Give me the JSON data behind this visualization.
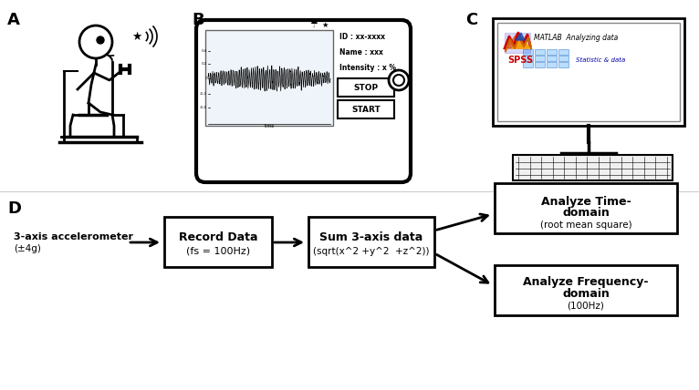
{
  "bg_color": "#ffffff",
  "label_A": "A",
  "label_B": "B",
  "label_C": "C",
  "label_D": "D",
  "accelerometer_label": "3-axis accelerometer",
  "accelerometer_sublabel": "(±4g)",
  "box1_line1": "Record Data",
  "box1_line2": "(fs = 100Hz)",
  "box2_line1": "Sum 3-axis data",
  "box2_line2": "(sqrt(x^2 +y^2  +z^2))",
  "box3_line1": "Analyze Time-",
  "box3_line2": "domain",
  "box3_line3": "(root mean square)",
  "box4_line1": "Analyze Frequency-",
  "box4_line2": "domain",
  "box4_line3": "(100Hz)",
  "device_id": "ID : xx-xxxx",
  "device_name": "Name : xxx",
  "device_intensity": "Intensity : x %",
  "device_stop": "STOP",
  "device_start": "START",
  "matlab_text": "MATLAB  Analyzing data",
  "spss_text": "SPSS",
  "statistic_text": "Statistic & data"
}
